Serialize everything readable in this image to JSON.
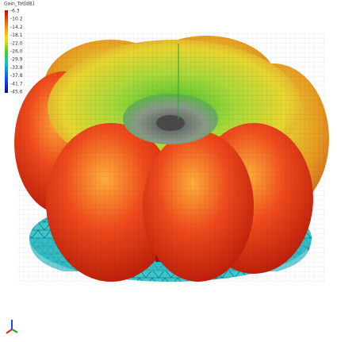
{
  "legend": {
    "title": "Gain_Tot[dB]",
    "labels": [
      "-6.3",
      "-10.2",
      "-14.2",
      "-18.1",
      "-22.0",
      "-26.0",
      "-29.9",
      "-33.8",
      "-37.8",
      "-41.7",
      "-45.6"
    ]
  },
  "axes": {
    "x": "x",
    "y": "y",
    "z": "z"
  }
}
